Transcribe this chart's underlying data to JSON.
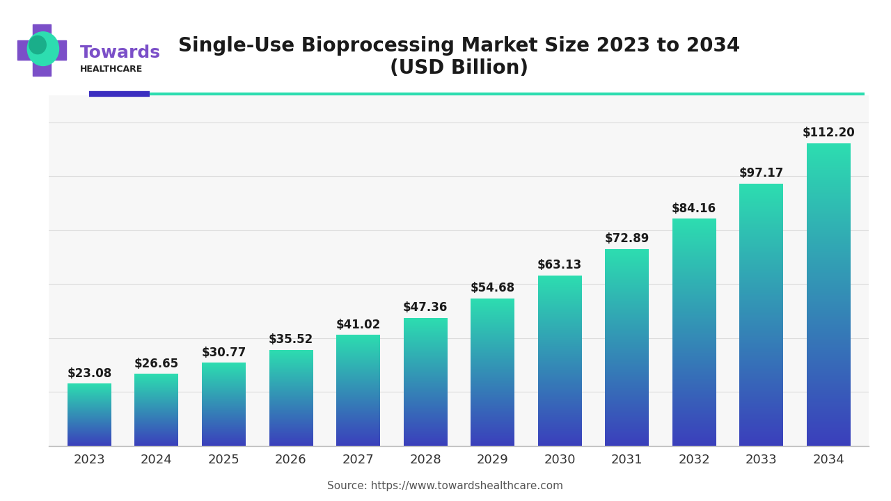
{
  "title_line1": "Single-Use Bioprocessing Market Size 2023 to 2034",
  "title_line2": "(USD Billion)",
  "source": "Source: https://www.towardshealthcare.com",
  "years": [
    2023,
    2024,
    2025,
    2026,
    2027,
    2028,
    2029,
    2030,
    2031,
    2032,
    2033,
    2034
  ],
  "values": [
    23.08,
    26.65,
    30.77,
    35.52,
    41.02,
    47.36,
    54.68,
    63.13,
    72.89,
    84.16,
    97.17,
    112.2
  ],
  "labels": [
    "$23.08",
    "$26.65",
    "$30.77",
    "$35.52",
    "$41.02",
    "$47.36",
    "$54.68",
    "$63.13",
    "$72.89",
    "$84.16",
    "$97.17",
    "$112.20"
  ],
  "bar_color_top": "#2DDDB0",
  "bar_color_bottom": "#3B3FBC",
  "background_color": "#FFFFFF",
  "chart_bg": "#F7F7F7",
  "title_fontsize": 20,
  "label_fontsize": 12,
  "tick_fontsize": 13,
  "source_fontsize": 11,
  "ylim": [
    0,
    130
  ],
  "bar_width": 0.65,
  "grid_color": "#DDDDDD",
  "logo_text_towards": "Towards",
  "logo_text_healthcare": "HEALTHCARE",
  "logo_color_towards": "#7B4FC8",
  "logo_color_healthcare": "#222222",
  "accent_bar_color1": "#3B2EC0",
  "accent_line_color": "#2DDDB0"
}
